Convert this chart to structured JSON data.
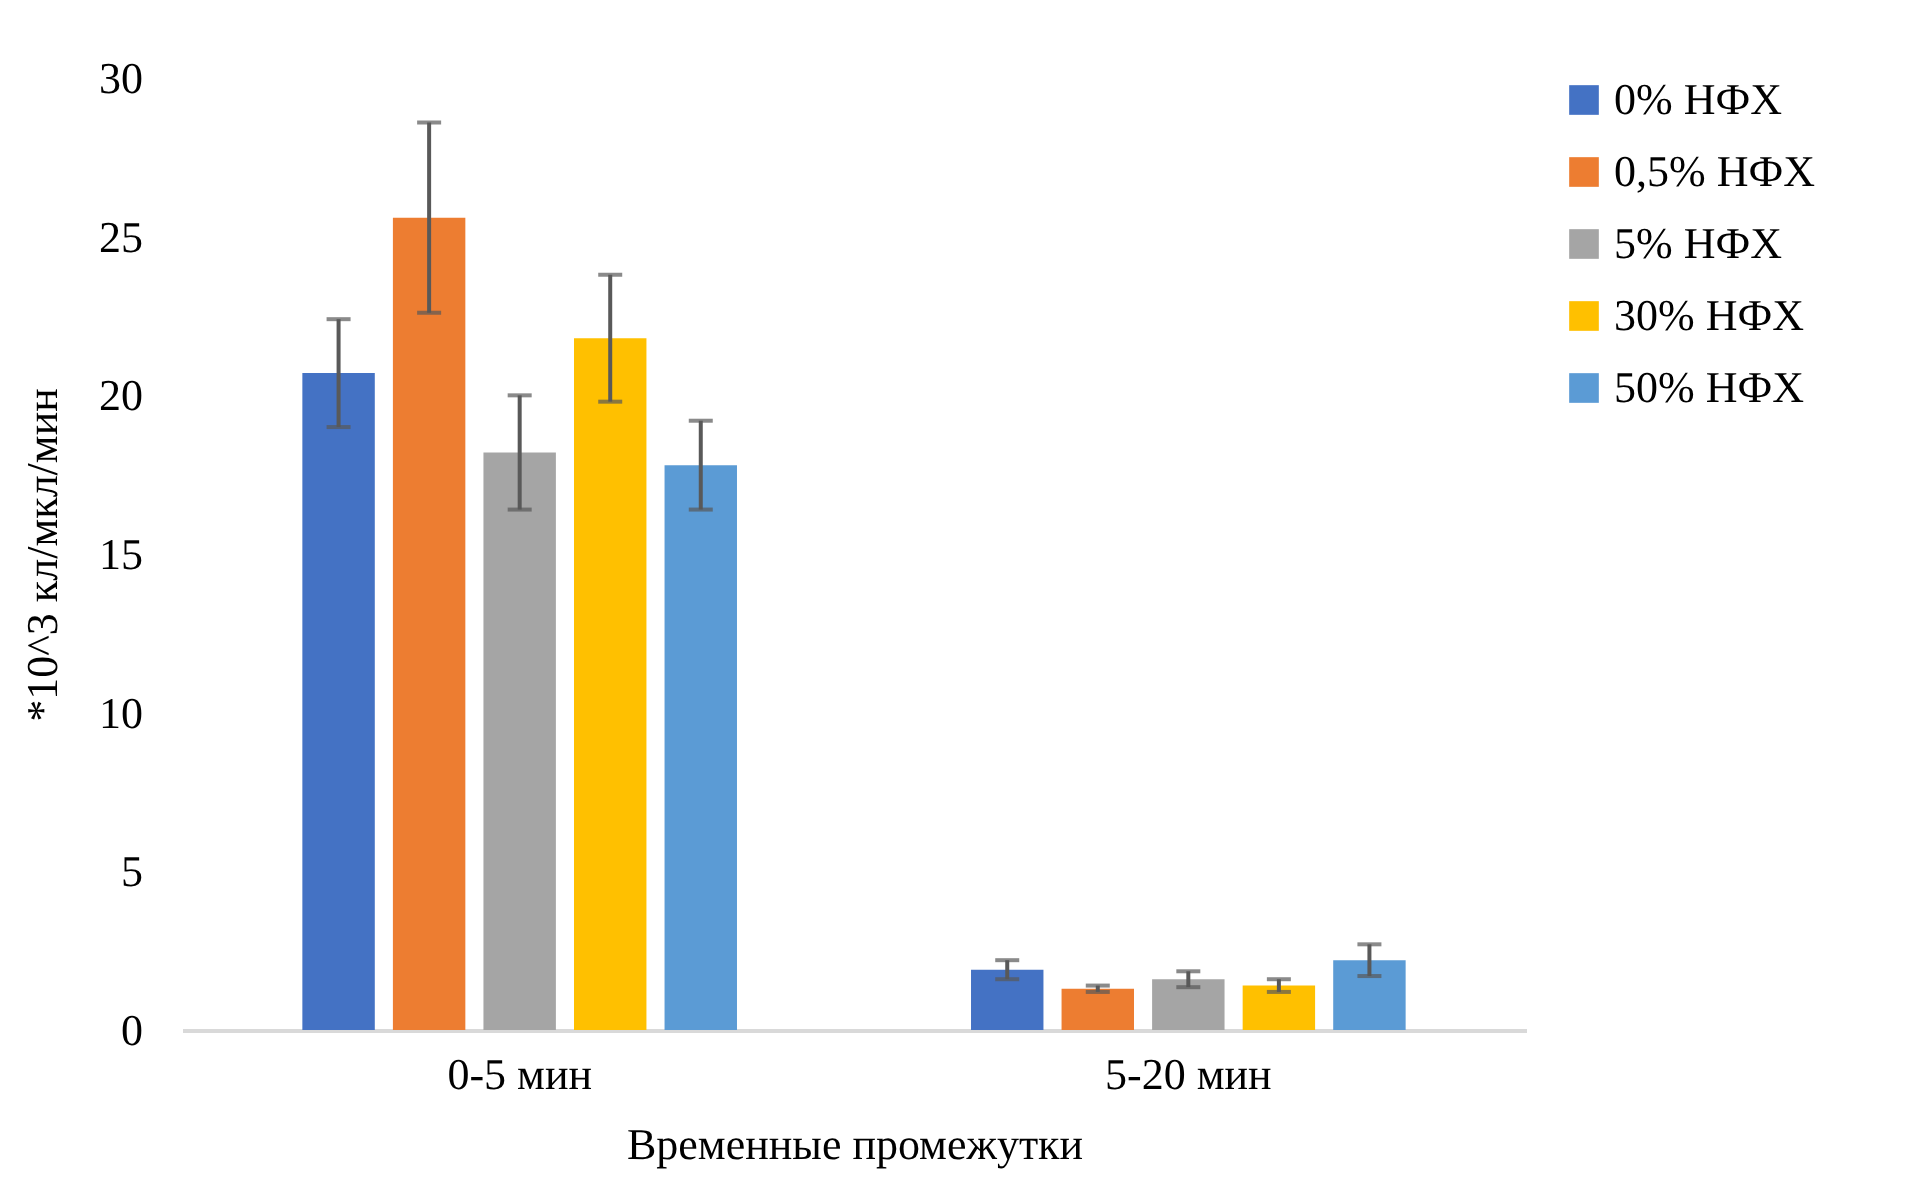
{
  "chart_data": {
    "type": "bar",
    "xlabel": "Временные промежутки",
    "ylabel": "*10^3 кл/мкл/мин",
    "categories": [
      "0-5 мин",
      "5-20 мин"
    ],
    "series": [
      {
        "name": "0% НФХ",
        "color": "#4472c4",
        "values": [
          20.7,
          1.9
        ],
        "errors": [
          1.7,
          0.3
        ]
      },
      {
        "name": "0,5% НФХ",
        "color": "#ed7d31",
        "values": [
          25.6,
          1.3
        ],
        "errors": [
          3.0,
          0.1
        ]
      },
      {
        "name": "5% НФХ",
        "color": "#a5a5a5",
        "values": [
          18.2,
          1.6
        ],
        "errors": [
          1.8,
          0.25
        ]
      },
      {
        "name": "30% НФХ",
        "color": "#ffc000",
        "values": [
          21.8,
          1.4
        ],
        "errors": [
          2.0,
          0.2
        ]
      },
      {
        "name": "50% НФХ",
        "color": "#5b9bd5",
        "values": [
          17.8,
          2.2
        ],
        "errors": [
          1.4,
          0.5
        ]
      }
    ],
    "ylim": [
      0,
      30
    ],
    "yticks": [
      0,
      5,
      10,
      15,
      20,
      25,
      30
    ],
    "grid": false,
    "legend": "right"
  }
}
